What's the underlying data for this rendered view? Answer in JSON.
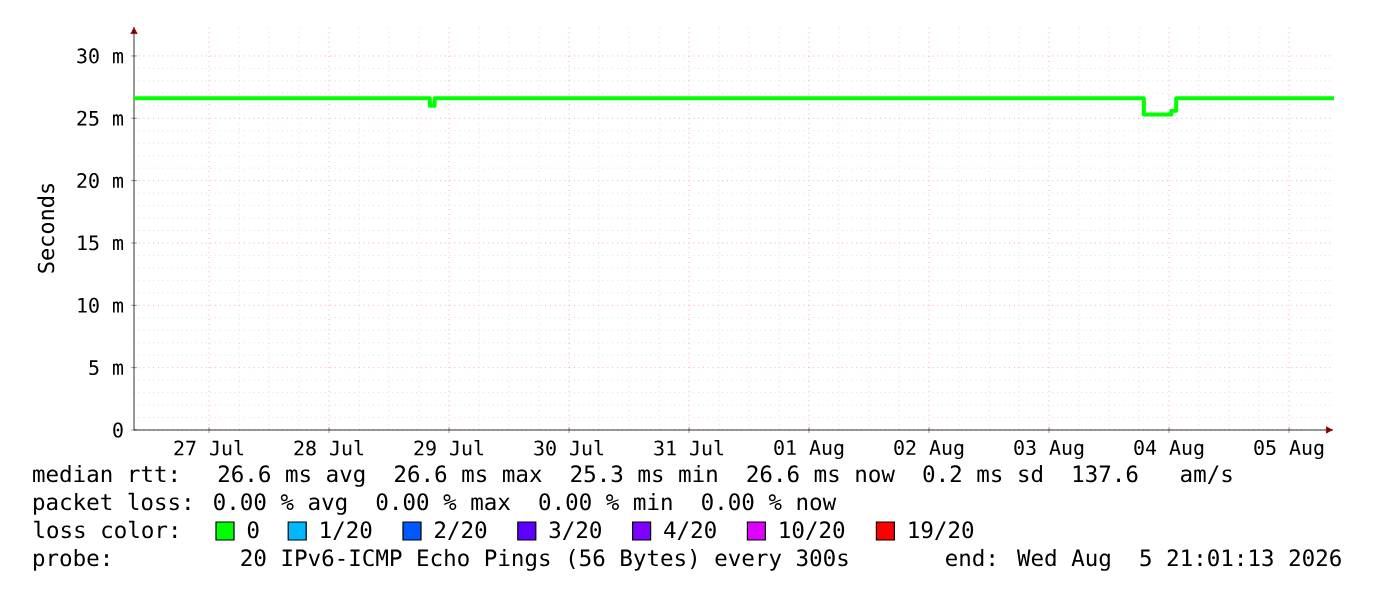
{
  "chart_data": {
    "type": "step",
    "ylabel": "Seconds",
    "x": [
      "2026-07-26T21:00",
      "2026-07-29T08:10",
      "2026-07-29T09:07",
      "2026-08-04T06:58",
      "2026-08-04T12:29",
      "2026-08-04T13:26",
      "2026-08-05T21:00"
    ],
    "series": [
      {
        "name": "0",
        "color": "#00ff00",
        "values": [
          26.6,
          26.0,
          26.6,
          25.3,
          25.6,
          26.6,
          26.6
        ]
      },
      {
        "name": "1/20",
        "color": "#00b8ff",
        "values": [
          null,
          null,
          null,
          null,
          null,
          null,
          null
        ]
      },
      {
        "name": "2/20",
        "color": "#0059ff",
        "values": [
          null,
          null,
          null,
          null,
          null,
          null,
          null
        ]
      },
      {
        "name": "3/20",
        "color": "#5e00ff",
        "values": [
          null,
          null,
          null,
          null,
          null,
          null,
          null
        ]
      },
      {
        "name": "4/20",
        "color": "#7e00ff",
        "values": [
          null,
          null,
          null,
          null,
          null,
          null,
          null
        ]
      },
      {
        "name": "10/20",
        "color": "#dd00ff",
        "values": [
          null,
          null,
          null,
          null,
          null,
          null,
          null
        ]
      },
      {
        "name": "19/20",
        "color": "#ff0000",
        "values": [
          null,
          null,
          null,
          null,
          null,
          null,
          null
        ]
      }
    ],
    "legend": "bottom",
    "legend_title": "loss color:",
    "grid": true,
    "xlim": [
      "2026-07-26T21:00",
      "2026-08-05T21:00"
    ],
    "xticks": [
      {
        "value": "2026-07-27T12:00",
        "label": "27 Jul"
      },
      {
        "value": "2026-07-28T12:00",
        "label": "28 Jul"
      },
      {
        "value": "2026-07-29T12:00",
        "label": "29 Jul"
      },
      {
        "value": "2026-07-30T12:00",
        "label": "30 Jul"
      },
      {
        "value": "2026-07-31T12:00",
        "label": "31 Jul"
      },
      {
        "value": "2026-08-01T12:00",
        "label": "01 Aug"
      },
      {
        "value": "2026-08-02T12:00",
        "label": "02 Aug"
      },
      {
        "value": "2026-08-03T12:00",
        "label": "03 Aug"
      },
      {
        "value": "2026-08-04T12:00",
        "label": "04 Aug"
      },
      {
        "value": "2026-08-05T12:00",
        "label": "05 Aug"
      }
    ],
    "ylim": [
      0,
      32.4
    ],
    "yticks": [
      {
        "value": 0,
        "label": "0"
      },
      {
        "value": 5,
        "label": "5 m"
      },
      {
        "value": 10,
        "label": "10 m"
      },
      {
        "value": 15,
        "label": "15 m"
      },
      {
        "value": 20,
        "label": "20 m"
      },
      {
        "value": 25,
        "label": "25 m"
      },
      {
        "value": 30,
        "label": "30 m"
      }
    ],
    "annotations": [
      "median rtt:  26.6 ms avg  26.6 ms max  25.3 ms min  26.6 ms now  0.2 ms sd  137.6   am/s",
      "packet loss: 0.00 % avg  0.00 % max  0.00 % min  0.00 % now",
      "probe:       20 IPv6-ICMP Echo Pings (56 Bytes) every 300s       end: Wed Aug  5 21:01:13 2026"
    ]
  }
}
